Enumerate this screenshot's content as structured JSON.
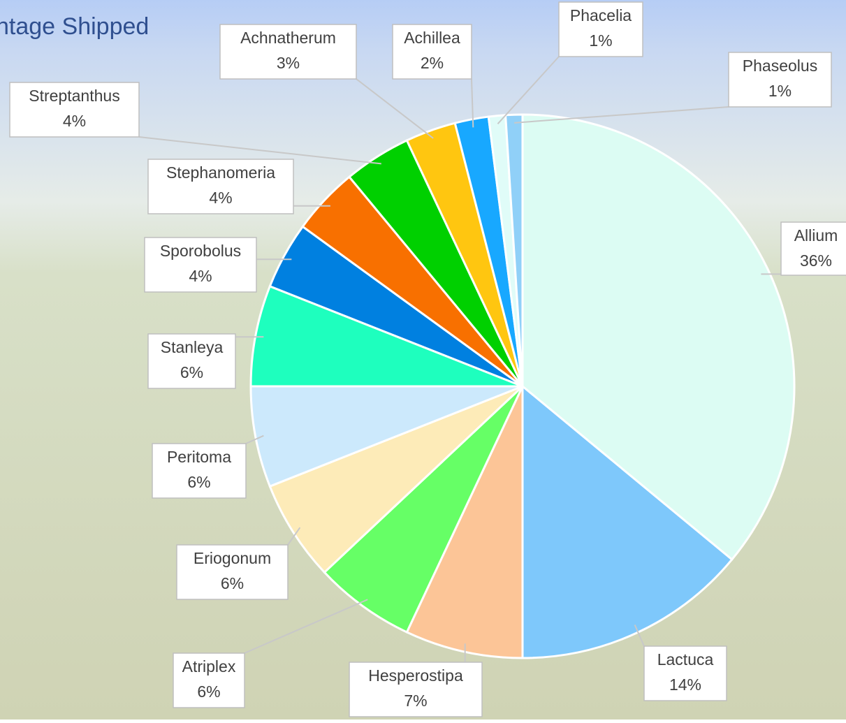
{
  "chart_data": {
    "type": "pie",
    "title": "ntage Shipped",
    "categories": [
      "Allium",
      "Lactuca",
      "Hesperostipa",
      "Atriplex",
      "Eriogonum",
      "Peritoma",
      "Stanleya",
      "Sporobolus",
      "Stephanomeria",
      "Streptanthus",
      "Achnatherum",
      "Achillea",
      "Phacelia",
      "Phaseolus"
    ],
    "values": [
      36,
      14,
      7,
      6,
      6,
      6,
      6,
      4,
      4,
      4,
      3,
      2,
      1,
      1
    ],
    "value_labels": [
      "36%",
      "14%",
      "7%",
      "6%",
      "6%",
      "6%",
      "6%",
      "4%",
      "4%",
      "4%",
      "3%",
      "2%",
      "1%",
      "1%"
    ],
    "colors": [
      "#dcfcf3",
      "#7ec8fb",
      "#fcc597",
      "#66ff66",
      "#fdebb8",
      "#cce9fc",
      "#1effbe",
      "#0080e0",
      "#f87000",
      "#00d000",
      "#ffc610",
      "#18a8ff",
      "#e0fcf8",
      "#90d0f8"
    ]
  }
}
